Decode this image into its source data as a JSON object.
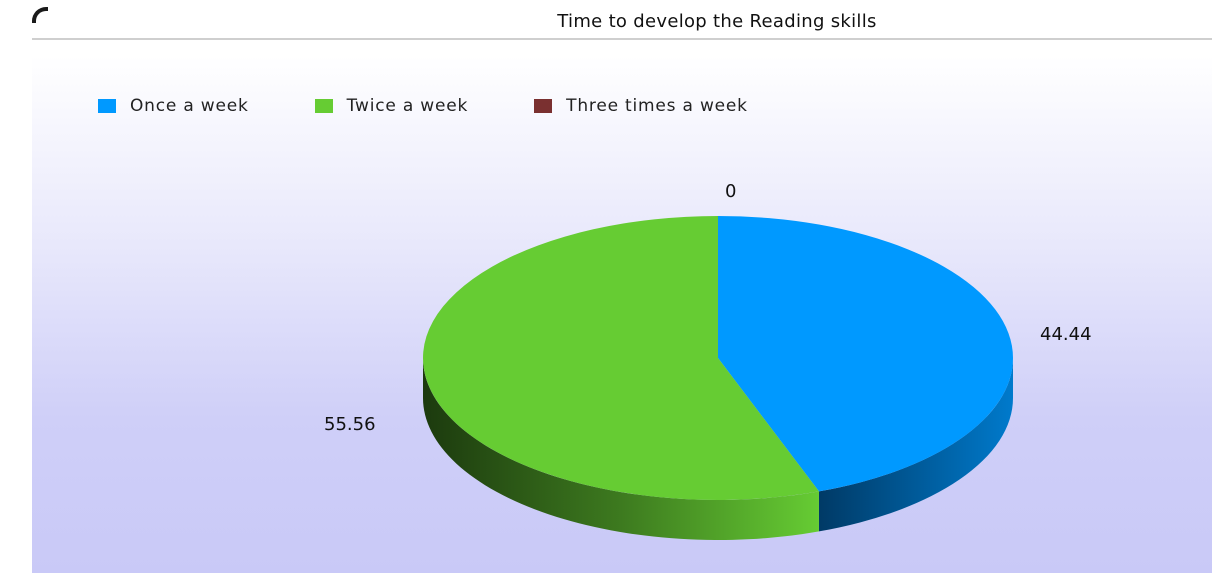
{
  "chart_data": {
    "type": "pie",
    "title": "Time to develop the Reading skills",
    "legend_position": "top-left",
    "style": "3d",
    "slices": [
      {
        "label": "Once a week",
        "value": 44.44,
        "value_text": "44.44",
        "color": "#0099ff",
        "side_color": "#005a99"
      },
      {
        "label": "Twice a week",
        "value": 55.56,
        "value_text": "55.56",
        "color": "#66cc33",
        "side_color": "#3d7a1f"
      },
      {
        "label": "Three times a week",
        "value": 0,
        "value_text": "0",
        "color": "#7a3030",
        "side_color": "#4d1e1e"
      }
    ]
  }
}
